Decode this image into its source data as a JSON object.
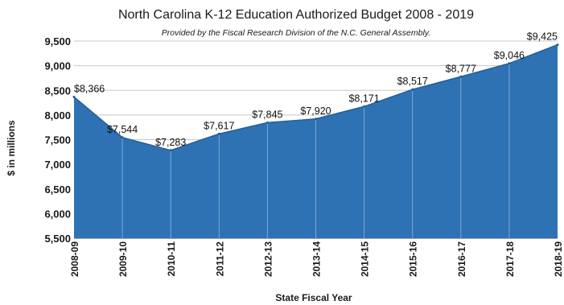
{
  "chart_data": {
    "type": "area",
    "title": "North Carolina K-12 Education Authorized Budget 2008 - 2019",
    "subtitle": "Provided by the Fiscal Research Division of the N.C. General Assembly.",
    "xlabel": "State Fiscal Year",
    "ylabel": "$ in millions",
    "ylim": [
      5500,
      9500
    ],
    "yticks": [
      "5,500",
      "6,000",
      "6,500",
      "7,000",
      "7,500",
      "8,000",
      "8,500",
      "9,000",
      "9,500"
    ],
    "ytick_values": [
      5500,
      6000,
      6500,
      7000,
      7500,
      8000,
      8500,
      9000,
      9500
    ],
    "grid": true,
    "color": "#2f72b4",
    "categories": [
      "2008-09",
      "2009-10",
      "2010-11",
      "2011-12",
      "2012-13",
      "2013-14",
      "2014-15",
      "2015-16",
      "2016-17",
      "2017-18",
      "2018-19"
    ],
    "values": [
      8366,
      7544,
      7283,
      7617,
      7845,
      7920,
      8171,
      8517,
      8777,
      9046,
      9425
    ],
    "data_labels": [
      "$8,366",
      "$7,544",
      "$7,283",
      "$7,617",
      "$7,845",
      "$7,920",
      "$8,171",
      "$8,517",
      "$8,777",
      "$9,046",
      "$9,425"
    ]
  }
}
